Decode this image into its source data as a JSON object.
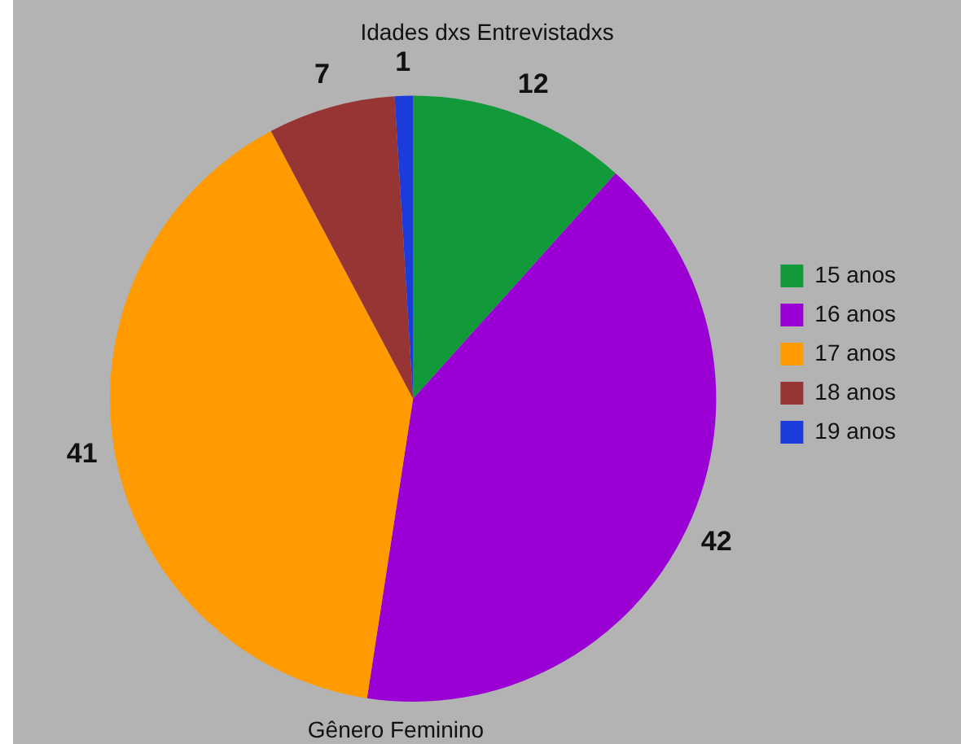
{
  "chart_data": {
    "type": "pie",
    "title": "Idades dxs Entrevistadxs",
    "categories": [
      "15 anos",
      "16 anos",
      "17 anos",
      "18 anos",
      "19 anos"
    ],
    "values": [
      12,
      42,
      41,
      7,
      1
    ],
    "colors": [
      "#129a3a",
      "#9a00d4",
      "#ff9a00",
      "#973535",
      "#1c3bdb"
    ],
    "data_labels": true,
    "legend": "right",
    "annotations": [
      "Gênero Feminino"
    ]
  }
}
